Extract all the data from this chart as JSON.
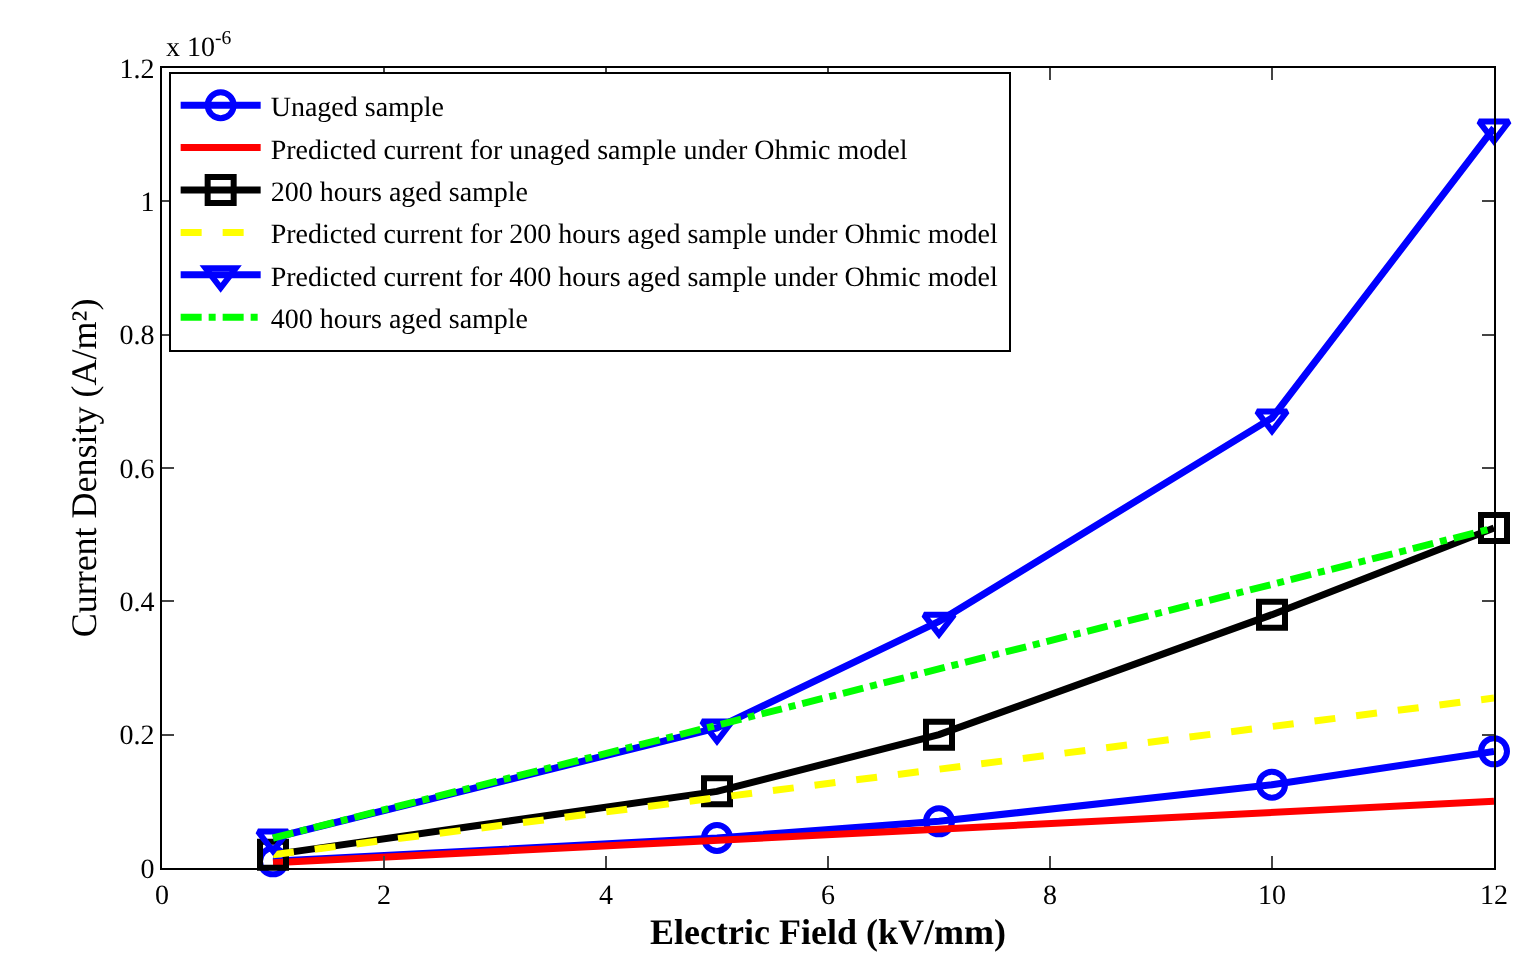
{
  "chart_data": {
    "type": "line",
    "xlabel": "Electric Field (kV/mm)",
    "ylabel": "Current Density (A/m²)",
    "annotations": [
      "x 10$^{-6}$"
    ],
    "xlim": [
      0,
      12
    ],
    "xticks": [
      0,
      2,
      4,
      6,
      8,
      10,
      12
    ],
    "ylim": [
      0,
      1.2
    ],
    "yticks": [
      0,
      0.2,
      0.4,
      0.6,
      0.8,
      1,
      1.2
    ],
    "legend": "top left",
    "series": [
      {
        "name": "Unaged sample",
        "color": "#0000ff",
        "marker": "circle",
        "line_style": "solid",
        "x": [
          1,
          5,
          7,
          10,
          12
        ],
        "values": [
          0.01,
          0.045,
          0.07,
          0.125,
          0.175
        ]
      },
      {
        "name": "Predicted current for unaged sample under Ohmic model",
        "color": "#ff0000",
        "marker": "none",
        "line_style": "solid",
        "x": [
          1,
          12
        ],
        "values": [
          0.008,
          0.1
        ]
      },
      {
        "name": "200 hours aged sample",
        "color": "#000000",
        "marker": "square",
        "line_style": "solid",
        "x": [
          1,
          5,
          7,
          10,
          12
        ],
        "values": [
          0.02,
          0.115,
          0.2,
          0.38,
          0.51
        ]
      },
      {
        "name": "Predicted current for 200 hours aged sample under Ohmic model",
        "color": "#ffff00",
        "marker": "none",
        "line_style": "dashed",
        "x": [
          1,
          12
        ],
        "values": [
          0.02,
          0.255
        ]
      },
      {
        "name": "Predicted current for 400 hours aged sample under Ohmic model",
        "color": "#0000ff",
        "marker": "triangle",
        "line_style": "solid",
        "x": [
          1,
          5,
          7,
          10,
          12
        ],
        "values": [
          0.045,
          0.21,
          0.37,
          0.675,
          1.11
        ]
      },
      {
        "name": "400 hours aged sample",
        "color": "#00ff00",
        "marker": "none",
        "line_style": "dashdot",
        "x": [
          1,
          12
        ],
        "values": [
          0.045,
          0.51
        ]
      }
    ]
  }
}
